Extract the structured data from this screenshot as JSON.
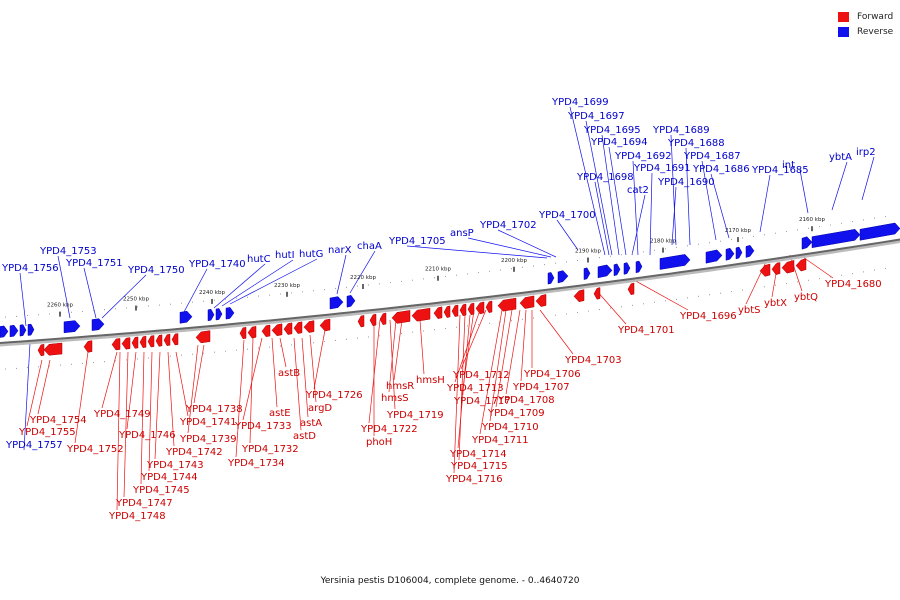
{
  "colors": {
    "forward": "#ee1111",
    "reverse": "#1111ee",
    "forward_label": "#cc0000",
    "reverse_label": "#0000cc"
  },
  "legend": {
    "forward": "Forward",
    "reverse": "Reverse"
  },
  "caption": "Yersinia pestis D106004, complete genome. - 0..4640720",
  "ticks": [
    "2160 kbp",
    "2170 kbp",
    "2180 kbp",
    "2190 kbp",
    "2200 kbp",
    "2210 kbp",
    "2220 kbp",
    "2230 kbp",
    "2240 kbp",
    "2250 kbp",
    "2260 kbp"
  ],
  "reverse_labels": [
    "YPD4_1699",
    "YPD4_1697",
    "YPD4_1695",
    "YPD4_1694",
    "YPD4_1692",
    "YPD4_1691",
    "YPD4_1698",
    "cat2",
    "YPD4_1690",
    "YPD4_1689",
    "YPD4_1688",
    "YPD4_1687",
    "YPD4_1686",
    "YPD4_1685",
    "int",
    "ybtA",
    "irp2",
    "YPD4_1700",
    "YPD4_1702",
    "ansP",
    "YPD4_1705",
    "chaA",
    "narX",
    "hutG",
    "hutI",
    "hutC",
    "YPD4_1740",
    "YPD4_1750",
    "YPD4_1753",
    "YPD4_1751",
    "YPD4_1756",
    "YPD4_1757"
  ],
  "forward_labels": [
    "YPD4_1680",
    "ybtQ",
    "ybtX",
    "ybtS",
    "YPD4_1696",
    "YPD4_1701",
    "YPD4_1703",
    "YPD4_1706",
    "YPD4_1707",
    "YPD4_1708",
    "YPD4_1709",
    "YPD4_1710",
    "YPD4_1711",
    "YPD4_1712",
    "YPD4_1713",
    "YPD4_1717",
    "YPD4_1714",
    "YPD4_1715",
    "YPD4_1716",
    "hmsH",
    "hmsR",
    "hmsS",
    "YPD4_1719",
    "YPD4_1722",
    "phoH",
    "YPD4_1726",
    "argD",
    "astA",
    "astD",
    "astB",
    "astE",
    "YPD4_1733",
    "YPD4_1732",
    "YPD4_1734",
    "YPD4_1738",
    "YPD4_1739",
    "YPD4_1741",
    "YPD4_1742",
    "YPD4_1743",
    "YPD4_1744",
    "YPD4_1745",
    "YPD4_1746",
    "YPD4_1747",
    "YPD4_1748",
    "YPD4_1749",
    "YPD4_1752",
    "YPD4_1754",
    "YPD4_1755"
  ]
}
